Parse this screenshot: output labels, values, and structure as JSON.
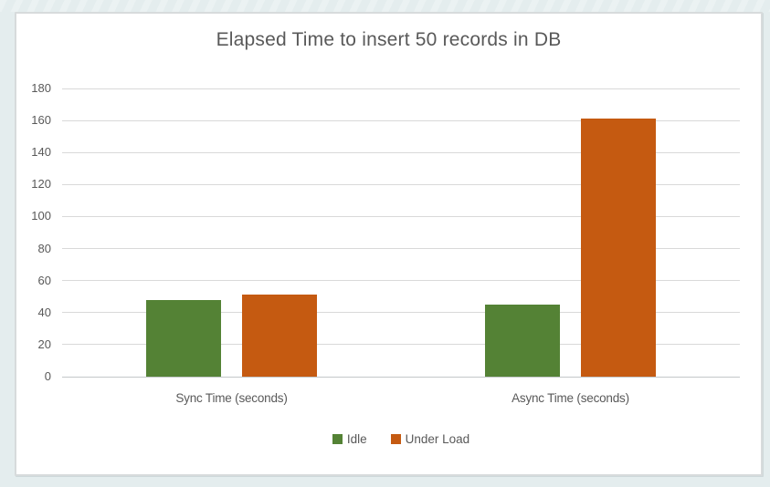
{
  "page_background": "#e4edee",
  "frame": {
    "background": "#ffffff",
    "border_color": "#d7dbdc"
  },
  "chart_data": {
    "type": "bar",
    "title": "Elapsed Time to insert 50 records in DB",
    "categories": [
      "Sync Time (seconds)",
      "Async Time (seconds)"
    ],
    "series": [
      {
        "name": "Idle",
        "color": "#548235",
        "values": [
          48,
          45
        ]
      },
      {
        "name": "Under Load",
        "color": "#C55A11",
        "values": [
          51,
          161
        ]
      }
    ],
    "xlabel": "",
    "ylabel": "",
    "ylim": [
      0,
      180
    ],
    "yticks": [
      0,
      20,
      40,
      60,
      80,
      100,
      120,
      140,
      160,
      180
    ],
    "grid": true,
    "legend_position": "bottom",
    "text_color": "#595959",
    "gridline_color": "#d9d9d9",
    "axis_line_color": "#c3c7c9"
  }
}
